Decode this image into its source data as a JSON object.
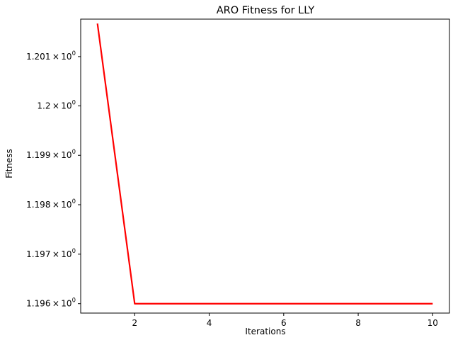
{
  "chart_data": {
    "type": "line",
    "title": "ARO Fitness for LLY",
    "xlabel": "Iterations",
    "ylabel": "Fitness",
    "x_scale": "linear",
    "y_scale": "log",
    "xlim": [
      0.55,
      10.45
    ],
    "ylim": [
      1.19581,
      1.20176
    ],
    "x_ticks": [
      2,
      4,
      6,
      8,
      10
    ],
    "y_ticks": [
      {
        "value": 1.196,
        "mantissa": "1.196"
      },
      {
        "value": 1.197,
        "mantissa": "1.197"
      },
      {
        "value": 1.198,
        "mantissa": "1.198"
      },
      {
        "value": 1.199,
        "mantissa": "1.199"
      },
      {
        "value": 1.2,
        "mantissa": "1.2"
      },
      {
        "value": 1.201,
        "mantissa": "1.201"
      }
    ],
    "y_tick_base": "10",
    "y_tick_exponent": "0",
    "grid": false,
    "legend": "none",
    "series": [
      {
        "color": "#ff0000",
        "x": [
          1,
          2,
          3,
          4,
          5,
          6,
          7,
          8,
          9,
          10
        ],
        "y": [
          1.20167,
          1.196,
          1.196,
          1.196,
          1.196,
          1.196,
          1.196,
          1.196,
          1.196,
          1.196
        ]
      }
    ]
  }
}
